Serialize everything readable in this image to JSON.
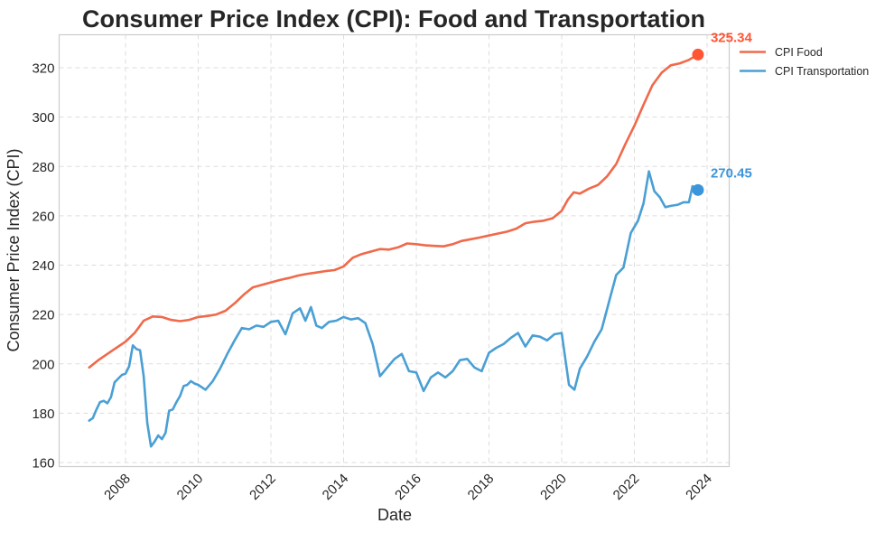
{
  "chart_data": {
    "type": "line",
    "title": "Consumer Price Index (CPI): Food and Transportation",
    "xlabel": "Date",
    "ylabel": "Consumer Price Index (CPI)",
    "xlim": [
      2006.5,
      2024.6
    ],
    "ylim": [
      158.5,
      333
    ],
    "grid": true,
    "legend_position": "outside-top-right",
    "x_ticks": [
      2008,
      2010,
      2012,
      2014,
      2016,
      2018,
      2020,
      2022,
      2024
    ],
    "x_tick_labels": [
      "2008",
      "2010",
      "2012",
      "2014",
      "2016",
      "2018",
      "2020",
      "2022",
      "2024"
    ],
    "y_ticks": [
      160,
      180,
      200,
      220,
      240,
      260,
      280,
      300,
      320
    ],
    "y_tick_labels": [
      "160",
      "180",
      "200",
      "220",
      "240",
      "260",
      "280",
      "300",
      "320"
    ],
    "series": [
      {
        "name": "CPI Food",
        "color": "#f0694a",
        "marker_color": "#ff5533",
        "end_label": "325.34",
        "x": [
          2007.0,
          2007.25,
          2007.5,
          2007.75,
          2008.0,
          2008.25,
          2008.5,
          2008.75,
          2009.0,
          2009.25,
          2009.5,
          2009.75,
          2010.0,
          2010.25,
          2010.5,
          2010.75,
          2011.0,
          2011.25,
          2011.5,
          2011.75,
          2012.0,
          2012.25,
          2012.5,
          2012.75,
          2013.0,
          2013.25,
          2013.5,
          2013.75,
          2014.0,
          2014.25,
          2014.5,
          2014.75,
          2015.0,
          2015.25,
          2015.5,
          2015.75,
          2016.0,
          2016.25,
          2016.5,
          2016.75,
          2017.0,
          2017.25,
          2017.5,
          2017.75,
          2018.0,
          2018.25,
          2018.5,
          2018.75,
          2019.0,
          2019.25,
          2019.5,
          2019.75,
          2020.0,
          2020.17,
          2020.33,
          2020.5,
          2020.75,
          2021.0,
          2021.25,
          2021.5,
          2021.75,
          2022.0,
          2022.25,
          2022.5,
          2022.75,
          2023.0,
          2023.25,
          2023.5,
          2023.75
        ],
        "values": [
          198.5,
          201.5,
          204.0,
          206.5,
          209.0,
          212.5,
          217.5,
          219.2,
          219.0,
          217.8,
          217.3,
          217.8,
          219.0,
          219.4,
          220.0,
          221.5,
          224.5,
          228.0,
          231.0,
          232.0,
          233.0,
          234.0,
          234.8,
          235.8,
          236.5,
          237.0,
          237.6,
          238.0,
          239.5,
          243.0,
          244.5,
          245.5,
          246.5,
          246.3,
          247.2,
          248.8,
          248.5,
          248.0,
          247.8,
          247.6,
          248.5,
          249.8,
          250.5,
          251.2,
          252.0,
          252.8,
          253.6,
          254.8,
          257.0,
          257.6,
          258.0,
          259.0,
          262.0,
          266.5,
          269.5,
          269.0,
          271.0,
          272.5,
          276.0,
          281.0,
          289.0,
          296.5,
          305.0,
          313.0,
          318.0,
          321.0,
          321.8,
          323.2,
          325.34
        ]
      },
      {
        "name": "CPI Transportation",
        "color": "#4a9fd4",
        "marker_color": "#3b95db",
        "end_label": "270.45",
        "x": [
          2007.0,
          2007.1,
          2007.2,
          2007.3,
          2007.4,
          2007.5,
          2007.6,
          2007.7,
          2007.8,
          2007.9,
          2008.0,
          2008.1,
          2008.2,
          2008.3,
          2008.4,
          2008.5,
          2008.6,
          2008.7,
          2008.8,
          2008.9,
          2009.0,
          2009.1,
          2009.2,
          2009.3,
          2009.4,
          2009.5,
          2009.6,
          2009.7,
          2009.8,
          2009.9,
          2010.0,
          2010.2,
          2010.4,
          2010.6,
          2010.8,
          2011.0,
          2011.2,
          2011.4,
          2011.6,
          2011.8,
          2012.0,
          2012.2,
          2012.4,
          2012.6,
          2012.8,
          2012.95,
          2013.1,
          2013.25,
          2013.4,
          2013.6,
          2013.8,
          2014.0,
          2014.2,
          2014.4,
          2014.6,
          2014.8,
          2015.0,
          2015.2,
          2015.4,
          2015.6,
          2015.8,
          2016.0,
          2016.2,
          2016.4,
          2016.6,
          2016.8,
          2017.0,
          2017.2,
          2017.4,
          2017.6,
          2017.8,
          2018.0,
          2018.2,
          2018.4,
          2018.6,
          2018.8,
          2019.0,
          2019.2,
          2019.4,
          2019.6,
          2019.8,
          2020.0,
          2020.2,
          2020.35,
          2020.5,
          2020.7,
          2020.9,
          2021.1,
          2021.3,
          2021.5,
          2021.7,
          2021.9,
          2022.1,
          2022.25,
          2022.4,
          2022.55,
          2022.7,
          2022.85,
          2023.0,
          2023.2,
          2023.35,
          2023.5,
          2023.6,
          2023.75
        ],
        "values": [
          177.0,
          178.0,
          181.5,
          184.5,
          185.0,
          184.0,
          186.5,
          192.5,
          194.0,
          195.5,
          196.0,
          199.0,
          207.5,
          206.0,
          205.5,
          195.0,
          176.0,
          166.5,
          168.5,
          171.0,
          169.5,
          172.0,
          181.0,
          181.5,
          184.5,
          187.0,
          191.0,
          191.5,
          193.0,
          192.0,
          191.5,
          189.5,
          193.0,
          198.0,
          204.0,
          209.5,
          214.5,
          214.0,
          215.5,
          215.0,
          217.0,
          217.5,
          212.0,
          220.5,
          222.5,
          217.5,
          223.0,
          215.5,
          214.5,
          217.0,
          217.5,
          219.0,
          218.0,
          218.5,
          216.5,
          208.0,
          195.0,
          198.5,
          202.0,
          204.0,
          197.0,
          196.5,
          189.0,
          194.5,
          196.5,
          194.5,
          197.0,
          201.5,
          202.0,
          198.5,
          197.0,
          204.5,
          206.5,
          208.0,
          210.5,
          212.5,
          207.0,
          211.5,
          211.0,
          209.5,
          212.0,
          212.5,
          191.5,
          189.5,
          198.0,
          203.0,
          209.0,
          214.0,
          225.0,
          236.0,
          239.0,
          253.0,
          258.0,
          265.0,
          278.0,
          270.0,
          267.5,
          263.5,
          264.0,
          264.5,
          265.5,
          265.5,
          272.0,
          270.45
        ]
      }
    ]
  }
}
